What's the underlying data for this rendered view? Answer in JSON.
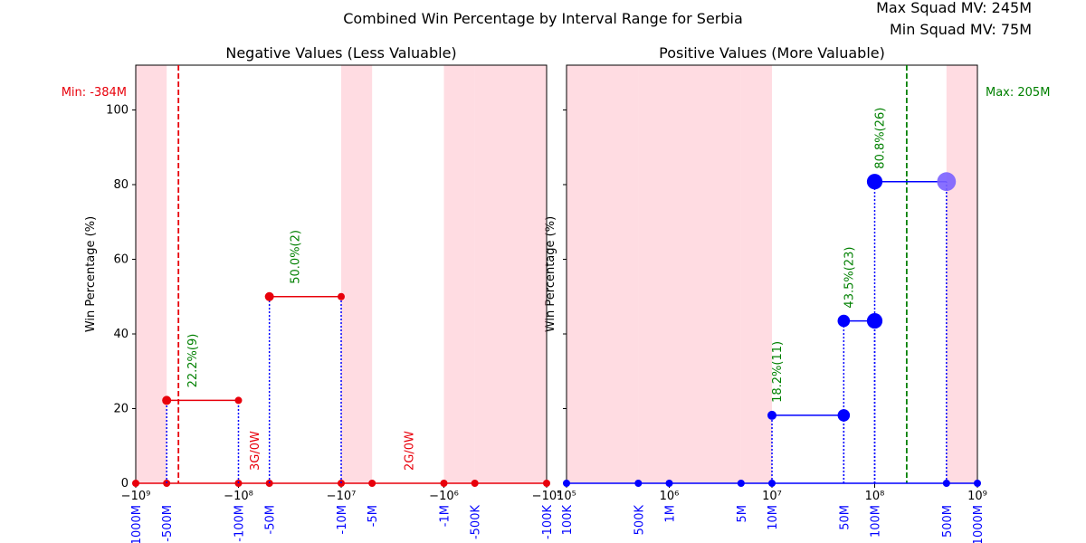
{
  "title": "Combined Win Percentage by Interval Range for Serbia",
  "info": {
    "max_mv": "Max Squad MV: 245M",
    "min_mv": "Min Squad MV: 75M"
  },
  "colors": {
    "neg": "#e8000b",
    "pos": "#0000ff",
    "shade": "#ffc0cb",
    "label": "#008000",
    "zero": "#e8000b"
  },
  "chart_data": [
    {
      "type": "line",
      "title": "Negative Values (Less Valuable)",
      "ylabel": "Win Percentage (%)",
      "xscale": "symlog-negative",
      "xlim": [
        -1000000000,
        -100000
      ],
      "ylim": [
        0,
        112
      ],
      "yticks": [
        0,
        20,
        40,
        60,
        80,
        100
      ],
      "major_ticks": [
        {
          "v": -1000000000,
          "label": "−10⁹"
        },
        {
          "v": -100000000,
          "label": "−10⁸"
        },
        {
          "v": -10000000,
          "label": "−10⁷"
        },
        {
          "v": -1000000,
          "label": "−10⁶"
        },
        {
          "v": -100000,
          "label": "−10⁵"
        }
      ],
      "interval_ticks": [
        {
          "v": -1000000000,
          "label": "-1000M"
        },
        {
          "v": -500000000,
          "label": "-500M"
        },
        {
          "v": -100000000,
          "label": "-100M"
        },
        {
          "v": -50000000,
          "label": "-50M"
        },
        {
          "v": -10000000,
          "label": "-10M"
        },
        {
          "v": -5000000,
          "label": "-5M"
        },
        {
          "v": -1000000,
          "label": "-1M"
        },
        {
          "v": -500000,
          "label": "-500K"
        },
        {
          "v": -100000,
          "label": "-100K"
        }
      ],
      "shaded": [
        [
          -1000000000,
          -500000000
        ],
        [
          -10000000,
          -5000000
        ],
        [
          -1000000,
          -500000
        ],
        [
          -500000,
          -100000
        ]
      ],
      "steps": [
        {
          "x0": -500000000,
          "x1": -100000000,
          "y": 22.2,
          "label": "22.2%(9)"
        },
        {
          "x0": -50000000,
          "x1": -10000000,
          "y": 50.0,
          "label": "50.0%(2)"
        }
      ],
      "zero_points": [
        -1000000000,
        -500000000,
        -100000000,
        -50000000,
        -10000000,
        -5000000,
        -1000000,
        -500000,
        -100000
      ],
      "zero_labels": [
        {
          "x": -70000000,
          "text": "3G/0W"
        },
        {
          "x": -2200000,
          "text": "2G/0W"
        }
      ],
      "ref_line": {
        "x": -384000000,
        "label": "Min: -384M"
      }
    },
    {
      "type": "line",
      "title": "Positive Values (More Valuable)",
      "ylabel": "Win Percentage (%)",
      "xscale": "log",
      "xlim": [
        100000,
        1000000000
      ],
      "ylim": [
        0,
        112
      ],
      "yticks": [
        0,
        20,
        40,
        60,
        80,
        100
      ],
      "major_ticks": [
        {
          "v": 100000,
          "label": "10⁵"
        },
        {
          "v": 1000000,
          "label": "10⁶"
        },
        {
          "v": 10000000,
          "label": "10⁷"
        },
        {
          "v": 100000000,
          "label": "10⁸"
        },
        {
          "v": 1000000000,
          "label": "10⁹"
        }
      ],
      "interval_ticks": [
        {
          "v": 100000,
          "label": "100K"
        },
        {
          "v": 500000,
          "label": "500K"
        },
        {
          "v": 1000000,
          "label": "1M"
        },
        {
          "v": 5000000,
          "label": "5M"
        },
        {
          "v": 10000000,
          "label": "10M"
        },
        {
          "v": 50000000,
          "label": "50M"
        },
        {
          "v": 100000000,
          "label": "100M"
        },
        {
          "v": 500000000,
          "label": "500M"
        },
        {
          "v": 1000000000,
          "label": "1000M"
        }
      ],
      "shaded": [
        [
          100000,
          500000
        ],
        [
          500000,
          1000000
        ],
        [
          1000000,
          5000000
        ],
        [
          5000000,
          10000000
        ],
        [
          500000000,
          1000000000
        ]
      ],
      "steps": [
        {
          "x0": 10000000,
          "x1": 50000000,
          "y": 18.2,
          "label": "18.2%(11)"
        },
        {
          "x0": 50000000,
          "x1": 100000000,
          "y": 43.5,
          "label": "43.5%(23)"
        },
        {
          "x0": 100000000,
          "x1": 500000000,
          "y": 80.8,
          "label": "80.8%(26)"
        }
      ],
      "zero_points": [
        100000,
        500000,
        1000000,
        5000000,
        10000000,
        500000000,
        1000000000
      ],
      "zero_labels": [],
      "ref_line": {
        "x": 205000000,
        "label": "Max: 205M"
      }
    }
  ]
}
